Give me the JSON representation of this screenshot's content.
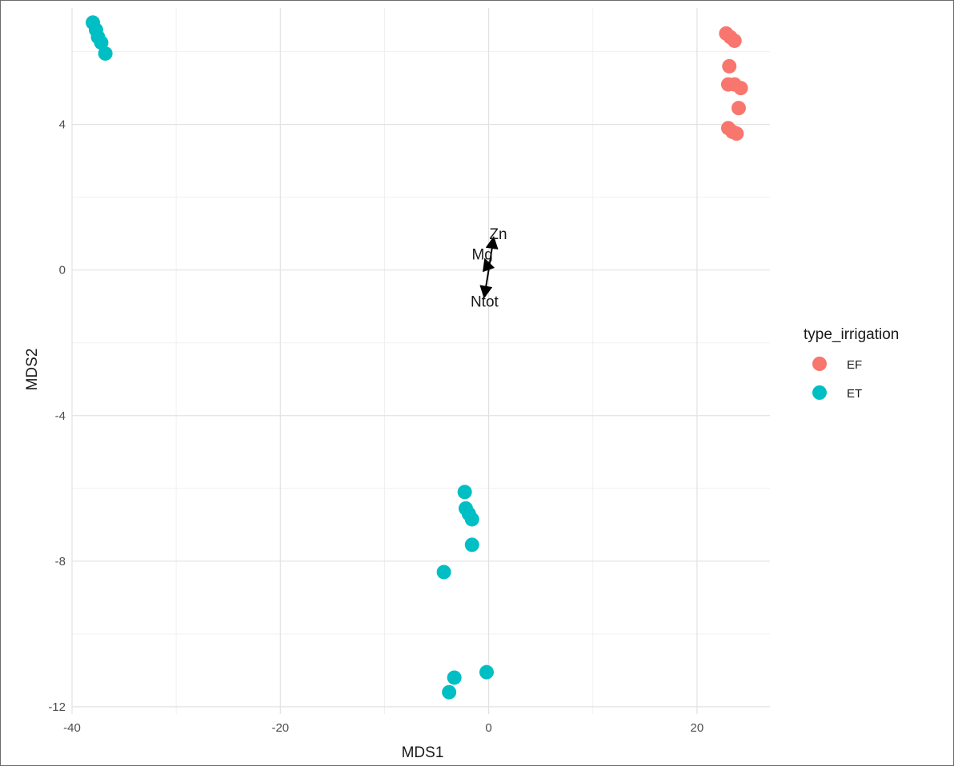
{
  "chart_data": {
    "type": "scatter",
    "xlabel": "MDS1",
    "ylabel": "MDS2",
    "xlim": [
      -40,
      27
    ],
    "ylim": [
      -12.2,
      7.2
    ],
    "x_ticks": [
      -40,
      -20,
      0,
      20
    ],
    "y_ticks": [
      -12,
      -8,
      -4,
      0,
      4
    ],
    "grid": true,
    "legend": {
      "title": "type_irrigation",
      "position": "right"
    },
    "series": [
      {
        "name": "EF",
        "color": "#F8766D",
        "points": [
          {
            "x": 22.8,
            "y": 6.5
          },
          {
            "x": 23.2,
            "y": 6.4
          },
          {
            "x": 23.6,
            "y": 6.3
          },
          {
            "x": 23.1,
            "y": 5.6
          },
          {
            "x": 23.0,
            "y": 5.1
          },
          {
            "x": 23.6,
            "y": 5.1
          },
          {
            "x": 24.2,
            "y": 5.0
          },
          {
            "x": 24.0,
            "y": 4.45
          },
          {
            "x": 23.0,
            "y": 3.9
          },
          {
            "x": 23.4,
            "y": 3.8
          },
          {
            "x": 23.8,
            "y": 3.75
          }
        ]
      },
      {
        "name": "ET",
        "color": "#00BFC4",
        "points": [
          {
            "x": -38.0,
            "y": 6.8
          },
          {
            "x": -37.7,
            "y": 6.6
          },
          {
            "x": -37.5,
            "y": 6.4
          },
          {
            "x": -37.2,
            "y": 6.25
          },
          {
            "x": -36.8,
            "y": 5.95
          },
          {
            "x": -2.3,
            "y": -6.1
          },
          {
            "x": -2.2,
            "y": -6.55
          },
          {
            "x": -1.9,
            "y": -6.7
          },
          {
            "x": -1.6,
            "y": -6.85
          },
          {
            "x": -1.6,
            "y": -7.55
          },
          {
            "x": -4.3,
            "y": -8.3
          },
          {
            "x": -0.2,
            "y": -11.05
          },
          {
            "x": -3.3,
            "y": -11.2
          },
          {
            "x": -3.8,
            "y": -11.6
          }
        ]
      }
    ],
    "vectors": [
      {
        "label": "Zn",
        "x": 0.45,
        "y": 0.85
      },
      {
        "label": "Mg",
        "x": -0.3,
        "y": 0.25
      },
      {
        "label": "Ntot",
        "x": -0.4,
        "y": -0.7
      }
    ]
  }
}
